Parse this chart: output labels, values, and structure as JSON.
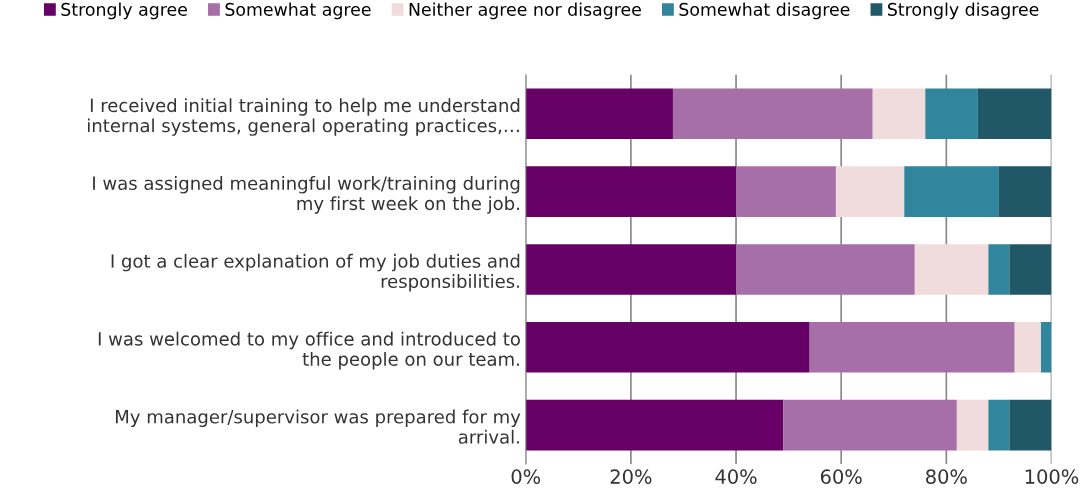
{
  "chart_data": {
    "type": "bar",
    "orientation": "horizontal",
    "stacked": true,
    "categories": [
      "I received initial training to help me understand\ninternal systems, general operating practices,…",
      "I was assigned meaningful work/training during\nmy first week on the job.",
      "I got a clear explanation of my job duties and\nresponsibilities.",
      "I was welcomed to my office and introduced to\nthe people on our team.",
      "My manager/supervisor was prepared for my\narrival."
    ],
    "series": [
      {
        "name": "Strongly agree",
        "color": "#660066",
        "values": [
          28,
          40,
          40,
          54,
          49
        ]
      },
      {
        "name": "Somewhat agree",
        "color": "#a66fa8",
        "values": [
          38,
          19,
          34,
          39,
          33
        ]
      },
      {
        "name": "Neither agree nor disagree",
        "color": "#f0dcdc",
        "values": [
          10,
          13,
          14,
          5,
          6
        ]
      },
      {
        "name": "Somewhat disagree",
        "color": "#31859c",
        "values": [
          10,
          18,
          4,
          2,
          4
        ]
      },
      {
        "name": "Strongly disagree",
        "color": "#215868",
        "values": [
          14,
          10,
          8,
          0,
          8
        ]
      }
    ],
    "xlim": [
      0,
      100
    ],
    "xticks": [
      {
        "value": 0,
        "label": "0%"
      },
      {
        "value": 20,
        "label": "20%"
      },
      {
        "value": 40,
        "label": "40%"
      },
      {
        "value": 60,
        "label": "60%"
      },
      {
        "value": 80,
        "label": "80%"
      },
      {
        "value": 100,
        "label": "100%"
      }
    ],
    "grid": "x",
    "legend": "top"
  }
}
